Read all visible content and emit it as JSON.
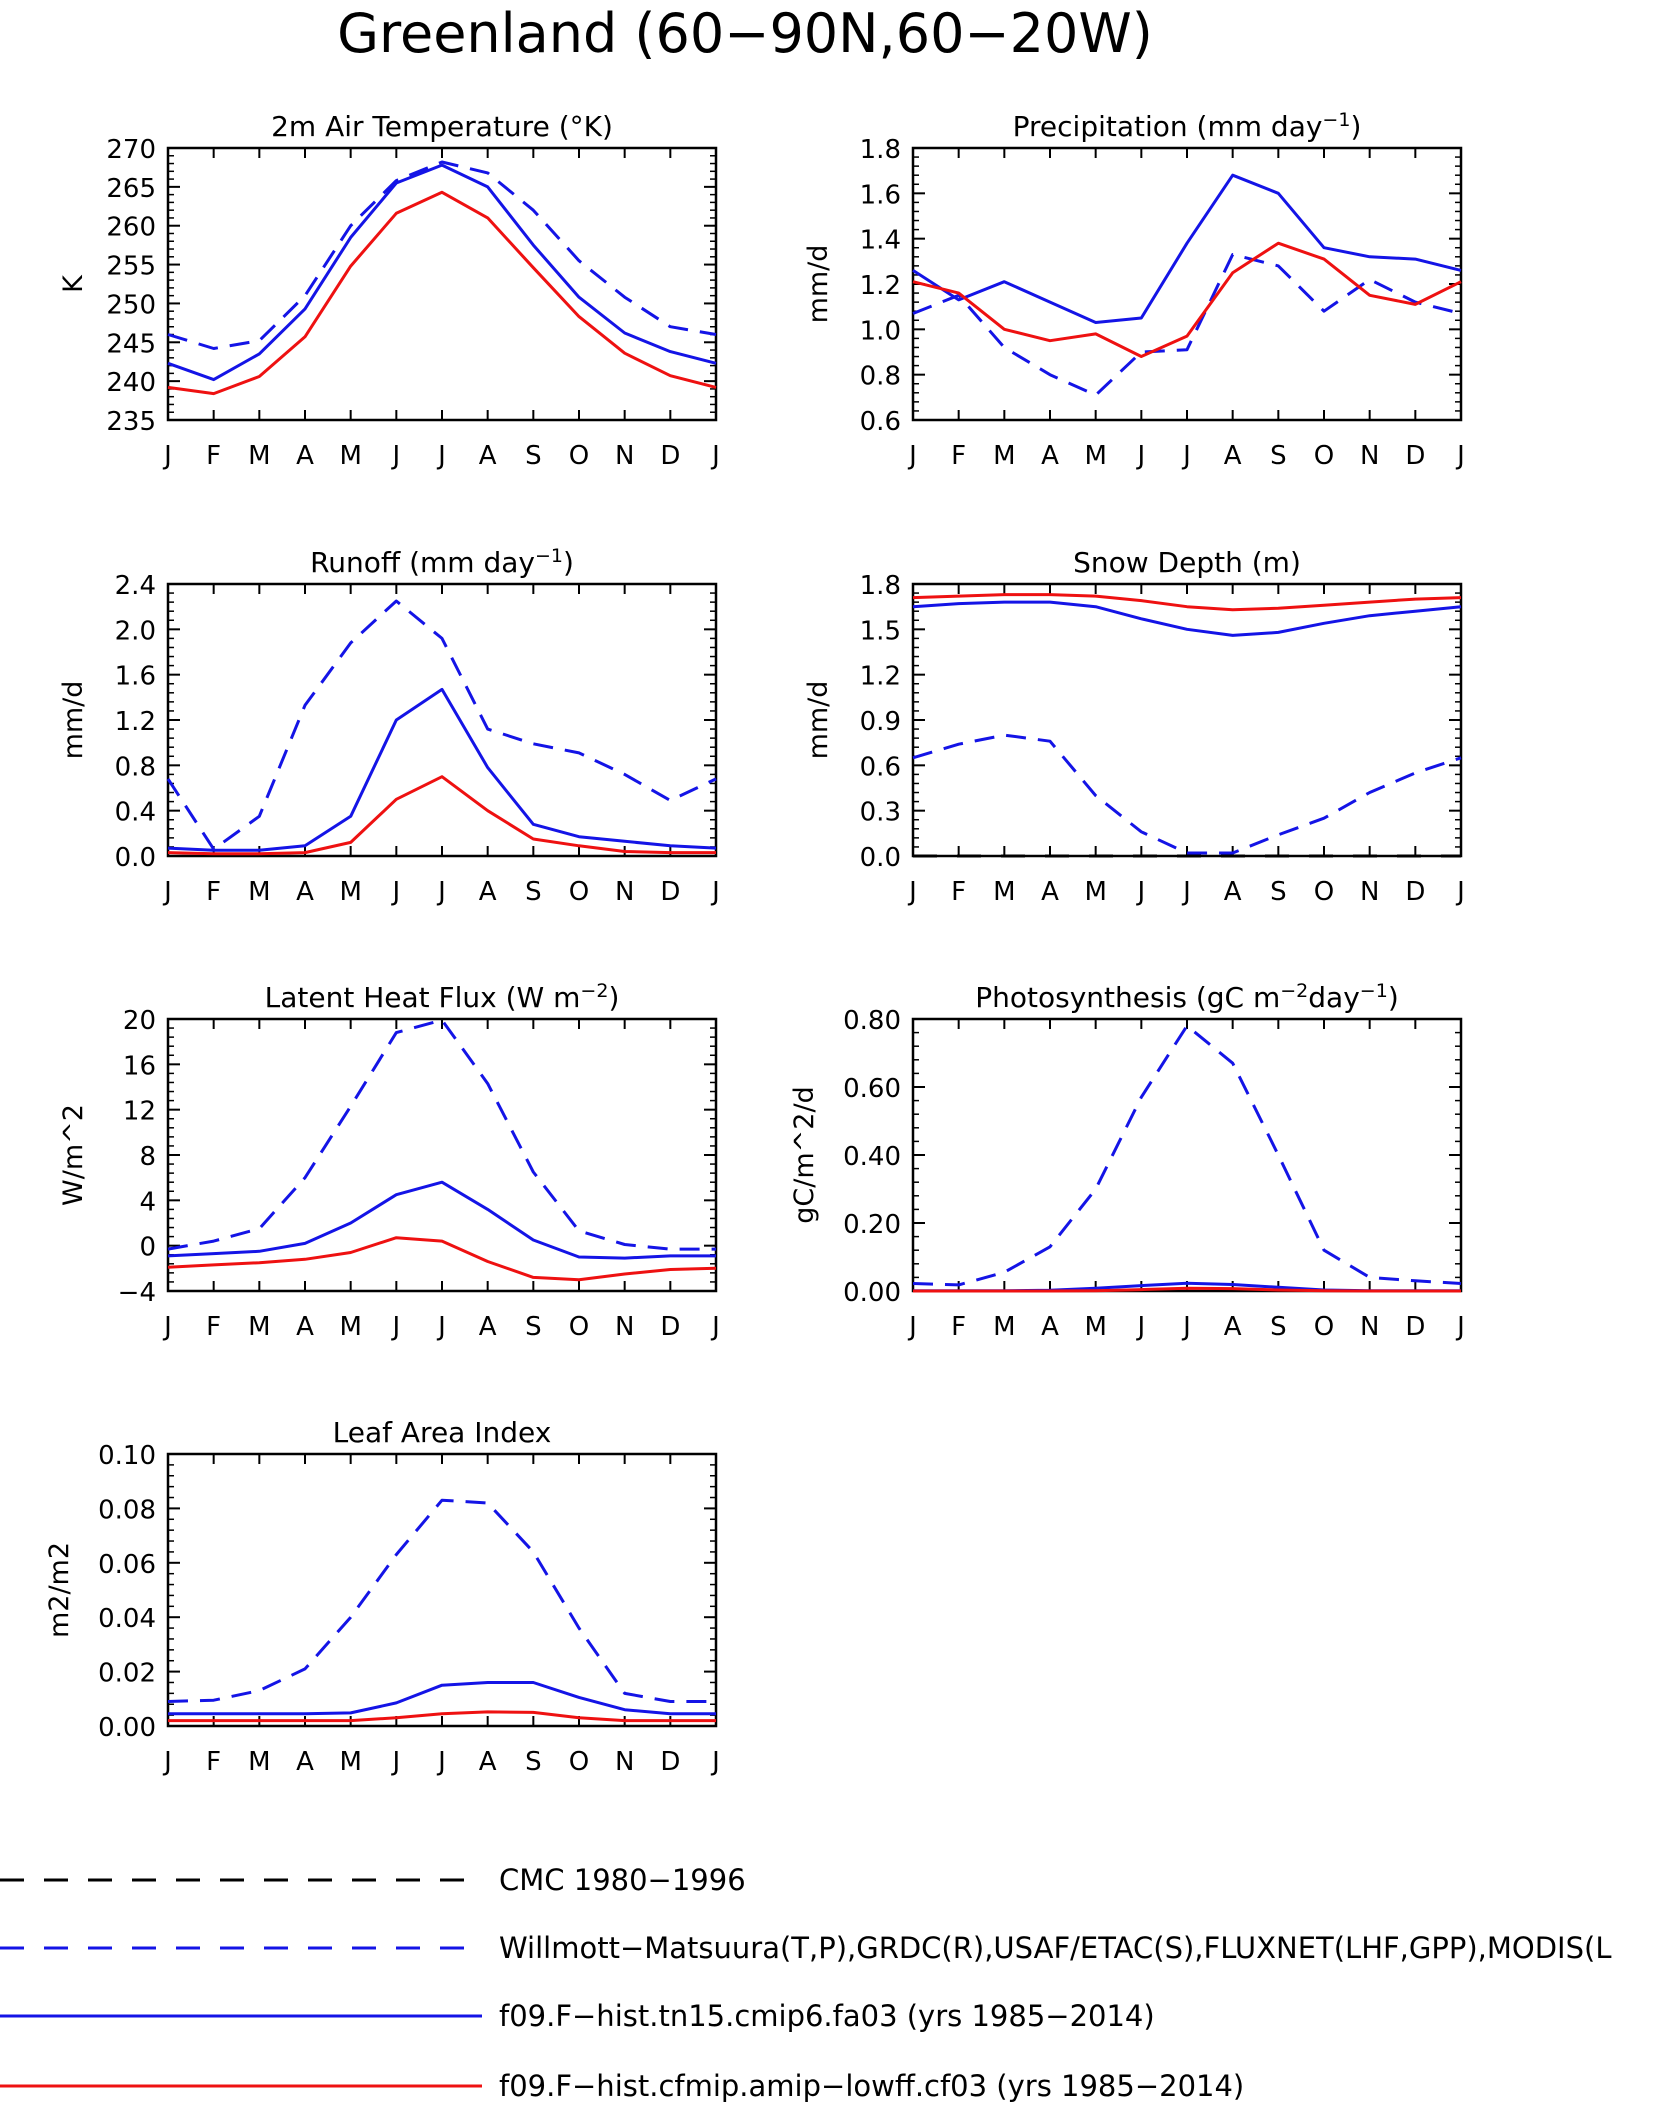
{
  "title": "Greenland (60−90N,60−20W)",
  "colors": {
    "obs_cmc": "#000000",
    "obs_main": "#1414e6",
    "model_a": "#1414e6",
    "model_b": "#ee1111"
  },
  "legend": {
    "entries": [
      {
        "label": "CMC 1980−1996",
        "color": "#000000",
        "style": "dashed"
      },
      {
        "label": "Willmott−Matsuura(T,P),GRDC(R),USAF/ETAC(S),FLUXNET(LHF,GPP),MODIS(L",
        "color": "#1414e6",
        "style": "dashed"
      },
      {
        "label": "f09.F−hist.tn15.cmip6.fa03 (yrs 1985−2014)",
        "color": "#1414e6",
        "style": "solid"
      },
      {
        "label": "f09.F−hist.cfmip.amip−lowff.cf03 (yrs 1985−2014)",
        "color": "#ee1111",
        "style": "solid"
      }
    ]
  },
  "chart_data": [
    {
      "type": "line",
      "title": "2m Air Temperature (°K)",
      "ylabel": "K",
      "ylim": [
        235,
        270
      ],
      "yticks": [
        "235",
        "240",
        "245",
        "250",
        "255",
        "260",
        "265",
        "270"
      ],
      "categories": [
        "J",
        "F",
        "M",
        "A",
        "M",
        "J",
        "J",
        "A",
        "S",
        "O",
        "N",
        "D",
        "J"
      ],
      "series": [
        {
          "style": "dashed",
          "color": "#1414e6",
          "values": [
            246,
            244.2,
            245.2,
            251,
            260,
            265.8,
            268.2,
            266.8,
            262,
            255.5,
            250.8,
            247,
            246
          ]
        },
        {
          "style": "solid",
          "color": "#1414e6",
          "values": [
            242.3,
            240.2,
            243.5,
            249.3,
            258.5,
            265.5,
            267.8,
            265,
            257.5,
            250.8,
            246.2,
            243.8,
            242.3
          ]
        },
        {
          "style": "solid",
          "color": "#ee1111",
          "values": [
            239.2,
            238.4,
            240.6,
            245.7,
            254.8,
            261.6,
            264.3,
            261,
            254.6,
            248.3,
            243.6,
            240.7,
            239.2
          ]
        }
      ]
    },
    {
      "type": "line",
      "title": "Precipitation (mm day",
      "title_sup": "−1",
      "title_tail": ")",
      "ylabel": "mm/d",
      "ylim": [
        0.6,
        1.8
      ],
      "yticks": [
        "0.6",
        "0.8",
        "1.0",
        "1.2",
        "1.4",
        "1.6",
        "1.8"
      ],
      "categories": [
        "J",
        "F",
        "M",
        "A",
        "M",
        "J",
        "J",
        "A",
        "S",
        "O",
        "N",
        "D",
        "J"
      ],
      "series": [
        {
          "style": "dashed",
          "color": "#1414e6",
          "values": [
            1.07,
            1.15,
            0.92,
            0.8,
            0.71,
            0.9,
            0.91,
            1.33,
            1.28,
            1.08,
            1.22,
            1.12,
            1.07
          ]
        },
        {
          "style": "solid",
          "color": "#1414e6",
          "values": [
            1.26,
            1.13,
            1.21,
            1.12,
            1.03,
            1.05,
            1.38,
            1.68,
            1.6,
            1.36,
            1.32,
            1.31,
            1.26
          ]
        },
        {
          "style": "solid",
          "color": "#ee1111",
          "values": [
            1.21,
            1.16,
            1.0,
            0.95,
            0.98,
            0.88,
            0.97,
            1.25,
            1.38,
            1.31,
            1.15,
            1.11,
            1.21
          ]
        }
      ]
    },
    {
      "type": "line",
      "title": "Runoff (mm day",
      "title_sup": "−1",
      "title_tail": ")",
      "ylabel": "mm/d",
      "ylim": [
        0,
        2.4
      ],
      "yticks": [
        "0.0",
        "0.4",
        "0.8",
        "1.2",
        "1.6",
        "2.0",
        "2.4"
      ],
      "categories": [
        "J",
        "F",
        "M",
        "A",
        "M",
        "J",
        "J",
        "A",
        "S",
        "O",
        "N",
        "D",
        "J"
      ],
      "series": [
        {
          "style": "dashed",
          "color": "#1414e6",
          "values": [
            0.68,
            0.06,
            0.35,
            1.33,
            1.88,
            2.25,
            1.92,
            1.12,
            0.99,
            0.91,
            0.72,
            0.49,
            0.68
          ]
        },
        {
          "style": "solid",
          "color": "#1414e6",
          "values": [
            0.07,
            0.05,
            0.05,
            0.09,
            0.35,
            1.2,
            1.47,
            0.78,
            0.28,
            0.17,
            0.13,
            0.09,
            0.07
          ]
        },
        {
          "style": "solid",
          "color": "#ee1111",
          "values": [
            0.03,
            0.02,
            0.02,
            0.03,
            0.12,
            0.5,
            0.7,
            0.4,
            0.15,
            0.09,
            0.04,
            0.03,
            0.03
          ]
        }
      ]
    },
    {
      "type": "line",
      "title": "Snow Depth (m)",
      "ylabel": "mm/d",
      "ylim": [
        0,
        1.8
      ],
      "yticks": [
        "0.0",
        "0.3",
        "0.6",
        "0.9",
        "1.2",
        "1.5",
        "1.8"
      ],
      "categories": [
        "J",
        "F",
        "M",
        "A",
        "M",
        "J",
        "J",
        "A",
        "S",
        "O",
        "N",
        "D",
        "J"
      ],
      "series": [
        {
          "style": "dashed",
          "color": "#000000",
          "values": [
            0,
            0,
            0,
            0,
            0,
            0,
            0,
            0,
            0,
            0,
            0,
            0,
            0
          ]
        },
        {
          "style": "dashed",
          "color": "#1414e6",
          "values": [
            0.65,
            0.74,
            0.8,
            0.76,
            0.4,
            0.16,
            0.02,
            0.02,
            0.14,
            0.25,
            0.42,
            0.55,
            0.65
          ]
        },
        {
          "style": "solid",
          "color": "#1414e6",
          "values": [
            1.65,
            1.67,
            1.68,
            1.68,
            1.65,
            1.57,
            1.5,
            1.46,
            1.48,
            1.54,
            1.59,
            1.62,
            1.65
          ]
        },
        {
          "style": "solid",
          "color": "#ee1111",
          "values": [
            1.71,
            1.72,
            1.73,
            1.73,
            1.72,
            1.69,
            1.65,
            1.63,
            1.64,
            1.66,
            1.68,
            1.7,
            1.71
          ]
        }
      ]
    },
    {
      "type": "line",
      "title": "Latent Heat Flux (W m",
      "title_sup": "−2",
      "title_tail": ")",
      "ylabel": "W/m^2",
      "ylim": [
        -4,
        20
      ],
      "yticks": [
        "−4",
        "0",
        "4",
        "8",
        "12",
        "16",
        "20"
      ],
      "categories": [
        "J",
        "F",
        "M",
        "A",
        "M",
        "J",
        "J",
        "A",
        "S",
        "O",
        "N",
        "D",
        "J"
      ],
      "series": [
        {
          "style": "dashed",
          "color": "#1414e6",
          "values": [
            -0.3,
            0.4,
            1.5,
            6.0,
            12.3,
            18.8,
            19.9,
            14.3,
            6.5,
            1.3,
            0.1,
            -0.3,
            -0.3
          ]
        },
        {
          "style": "solid",
          "color": "#1414e6",
          "values": [
            -0.9,
            -0.7,
            -0.5,
            0.2,
            2.0,
            4.5,
            5.6,
            3.2,
            0.5,
            -1.0,
            -1.1,
            -0.9,
            -0.9
          ]
        },
        {
          "style": "solid",
          "color": "#ee1111",
          "values": [
            -1.9,
            -1.7,
            -1.5,
            -1.2,
            -0.6,
            0.7,
            0.4,
            -1.4,
            -2.8,
            -3.0,
            -2.5,
            -2.1,
            -2.0
          ]
        }
      ]
    },
    {
      "type": "line",
      "title": "Photosynthesis (gC m",
      "title_sup": "−2",
      "title_tail": "day",
      "title_sup2": "−1",
      "title_tail2": ")",
      "ylabel": "gC/m^2/d",
      "ylim": [
        0,
        0.8
      ],
      "yticks": [
        "0.00",
        "0.20",
        "0.40",
        "0.60",
        "0.80"
      ],
      "categories": [
        "J",
        "F",
        "M",
        "A",
        "M",
        "J",
        "J",
        "A",
        "S",
        "O",
        "N",
        "D",
        "J"
      ],
      "series": [
        {
          "style": "dashed",
          "color": "#1414e6",
          "values": [
            0.022,
            0.018,
            0.055,
            0.13,
            0.3,
            0.57,
            0.78,
            0.67,
            0.4,
            0.12,
            0.04,
            0.03,
            0.022
          ]
        },
        {
          "style": "solid",
          "color": "#1414e6",
          "values": [
            0.001,
            0.001,
            0.001,
            0.002,
            0.008,
            0.016,
            0.023,
            0.019,
            0.011,
            0.003,
            0.001,
            0.001,
            0.001
          ]
        },
        {
          "style": "solid",
          "color": "#ee1111",
          "values": [
            0,
            0,
            0,
            0,
            0.001,
            0.004,
            0.008,
            0.007,
            0.003,
            0.001,
            0,
            0,
            0
          ]
        }
      ]
    },
    {
      "type": "line",
      "title": "Leaf Area Index",
      "ylabel": "m2/m2",
      "ylim": [
        0,
        0.1
      ],
      "yticks": [
        "0.00",
        "0.02",
        "0.04",
        "0.06",
        "0.08",
        "0.10"
      ],
      "categories": [
        "J",
        "F",
        "M",
        "A",
        "M",
        "J",
        "J",
        "A",
        "S",
        "O",
        "N",
        "D",
        "J"
      ],
      "series": [
        {
          "style": "dashed",
          "color": "#1414e6",
          "values": [
            0.009,
            0.0095,
            0.013,
            0.021,
            0.04,
            0.063,
            0.083,
            0.082,
            0.064,
            0.036,
            0.012,
            0.009,
            0.009
          ]
        },
        {
          "style": "solid",
          "color": "#1414e6",
          "values": [
            0.0045,
            0.0045,
            0.0045,
            0.0045,
            0.0048,
            0.0085,
            0.015,
            0.016,
            0.016,
            0.0105,
            0.006,
            0.0045,
            0.0045
          ]
        },
        {
          "style": "solid",
          "color": "#ee1111",
          "values": [
            0.002,
            0.002,
            0.002,
            0.002,
            0.002,
            0.003,
            0.0045,
            0.0052,
            0.005,
            0.003,
            0.002,
            0.002,
            0.002
          ]
        }
      ]
    }
  ]
}
